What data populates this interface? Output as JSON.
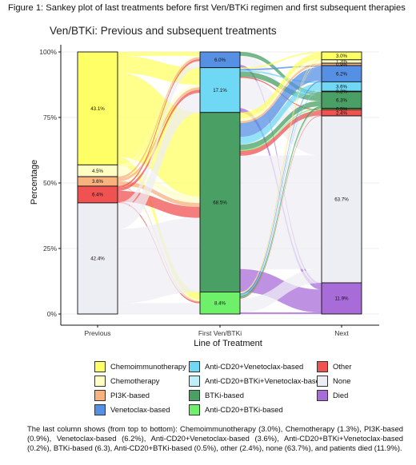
{
  "figure_caption": "Figure 1: Sankey plot of last treatments before first Ven/BTKi regimen and first subsequent therapies",
  "footnote": "The last column shows (from top to bottom): Chemoimmunotherapy (3.0%), Chemotherapy (1.3%), PI3K-based (0.9%), Venetoclax-based (6.2%), Anti-CD20+Venetoclax-based (3.6%), Anti-CD20+BTKi+Venetoclax-based (0.2%), BTKi-based (6.3), Anti-CD20+BTKi-based (0.5%), other (2.4%), none (63.7%), and patients died (11.9%).",
  "chart_data": {
    "type": "sankey",
    "title": "Ven/BTKi: Previous and subsequent treatments",
    "xlabel": "Line of Treatment",
    "ylabel": "Percentage",
    "ylim": [
      0,
      100
    ],
    "y_ticks": [
      "0%",
      "25%",
      "50%",
      "75%",
      "100%"
    ],
    "y_tick_values": [
      0,
      25,
      50,
      75,
      100
    ],
    "grid": true,
    "legend_position": "bottom",
    "colors": {
      "Chemoimmunotherapy": "#ffff66",
      "Chemotherapy": "#ffffc4",
      "PI3K-based": "#f7b27e",
      "Venetoclax-based": "#5590e4",
      "Anti-CD20+Venetoclax-based": "#6fd8f4",
      "Anti-CD20+BTKi+Venetoclax-based": "#bff0fa",
      "BTKi-based": "#4aa064",
      "Anti-CD20+BTKi-based": "#6ff06a",
      "Other": "#f05252",
      "None": "#ededf4",
      "Died": "#a86cd8"
    },
    "legend": [
      "Chemoimmunotherapy",
      "Chemotherapy",
      "PI3K-based",
      "Venetoclax-based",
      "Anti-CD20+Venetoclax-based",
      "Anti-CD20+BTKi+Venetoclax-based",
      "BTKi-based",
      "Anti-CD20+BTKi-based",
      "Other",
      "None",
      "Died"
    ],
    "columns": [
      {
        "name": "Previous",
        "segments": [
          {
            "category": "Chemoimmunotherapy",
            "value": 43.1,
            "label": "43.1%"
          },
          {
            "category": "Chemotherapy",
            "value": 4.5,
            "label": "4.5%"
          },
          {
            "category": "PI3K-based",
            "value": 3.6,
            "label": "3.6%"
          },
          {
            "category": "Other",
            "value": 6.4,
            "label": "6.4%"
          },
          {
            "category": "None",
            "value": 42.4,
            "label": "42.4%"
          }
        ]
      },
      {
        "name": "First Ven/BTKi",
        "segments": [
          {
            "category": "Venetoclax-based",
            "value": 6.0,
            "label": "6.0%"
          },
          {
            "category": "Anti-CD20+Venetoclax-based",
            "value": 17.1,
            "label": "17.1%"
          },
          {
            "category": "BTKi-based",
            "value": 68.5,
            "label": "68.5%"
          },
          {
            "category": "Anti-CD20+BTKi-based",
            "value": 8.4,
            "label": "8.4%"
          }
        ]
      },
      {
        "name": "Next",
        "segments": [
          {
            "category": "Chemoimmunotherapy",
            "value": 3.0,
            "label": "3.0%"
          },
          {
            "category": "Chemotherapy",
            "value": 1.3,
            "label": "1.3%"
          },
          {
            "category": "PI3K-based",
            "value": 0.9,
            "label": "0.9%"
          },
          {
            "category": "Venetoclax-based",
            "value": 6.2,
            "label": "6.2%"
          },
          {
            "category": "Anti-CD20+Venetoclax-based",
            "value": 3.6,
            "label": "3.6%"
          },
          {
            "category": "Anti-CD20+BTKi+Venetoclax-based",
            "value": 0.2,
            "label": "0.2%"
          },
          {
            "category": "BTKi-based",
            "value": 6.3,
            "label": "6.3%"
          },
          {
            "category": "Anti-CD20+BTKi-based",
            "value": 0.5,
            "label": "0.5%"
          },
          {
            "category": "Other",
            "value": 2.4,
            "label": "2.4%"
          },
          {
            "category": "None",
            "value": 63.7,
            "label": "63.7%"
          },
          {
            "category": "Died",
            "value": 11.9,
            "label": "11.9%"
          }
        ]
      }
    ],
    "flows": [
      {
        "stage": 0,
        "from": "Chemoimmunotherapy",
        "to": "Venetoclax-based",
        "value": 1.5
      },
      {
        "stage": 0,
        "from": "Chemoimmunotherapy",
        "to": "Anti-CD20+Venetoclax-based",
        "value": 6.5
      },
      {
        "stage": 0,
        "from": "Chemoimmunotherapy",
        "to": "BTKi-based",
        "value": 32.1
      },
      {
        "stage": 0,
        "from": "Chemoimmunotherapy",
        "to": "Anti-CD20+BTKi-based",
        "value": 3.0
      },
      {
        "stage": 0,
        "from": "Chemotherapy",
        "to": "Venetoclax-based",
        "value": 0.5
      },
      {
        "stage": 0,
        "from": "Chemotherapy",
        "to": "Anti-CD20+Venetoclax-based",
        "value": 1.0
      },
      {
        "stage": 0,
        "from": "Chemotherapy",
        "to": "BTKi-based",
        "value": 2.5
      },
      {
        "stage": 0,
        "from": "Chemotherapy",
        "to": "Anti-CD20+BTKi-based",
        "value": 0.5
      },
      {
        "stage": 0,
        "from": "PI3K-based",
        "to": "Venetoclax-based",
        "value": 0.8
      },
      {
        "stage": 0,
        "from": "PI3K-based",
        "to": "Anti-CD20+Venetoclax-based",
        "value": 1.0
      },
      {
        "stage": 0,
        "from": "PI3K-based",
        "to": "BTKi-based",
        "value": 1.5
      },
      {
        "stage": 0,
        "from": "PI3K-based",
        "to": "Anti-CD20+BTKi-based",
        "value": 0.3
      },
      {
        "stage": 0,
        "from": "Other",
        "to": "Venetoclax-based",
        "value": 0.7
      },
      {
        "stage": 0,
        "from": "Other",
        "to": "Anti-CD20+Venetoclax-based",
        "value": 1.1
      },
      {
        "stage": 0,
        "from": "Other",
        "to": "BTKi-based",
        "value": 4.1
      },
      {
        "stage": 0,
        "from": "Other",
        "to": "Anti-CD20+BTKi-based",
        "value": 0.5
      },
      {
        "stage": 0,
        "from": "None",
        "to": "Venetoclax-based",
        "value": 2.5
      },
      {
        "stage": 0,
        "from": "None",
        "to": "Anti-CD20+Venetoclax-based",
        "value": 7.5
      },
      {
        "stage": 0,
        "from": "None",
        "to": "BTKi-based",
        "value": 28.3
      },
      {
        "stage": 0,
        "from": "None",
        "to": "Anti-CD20+BTKi-based",
        "value": 4.1
      },
      {
        "stage": 1,
        "from": "Venetoclax-based",
        "to": "BTKi-based",
        "value": 1.5
      },
      {
        "stage": 1,
        "from": "Venetoclax-based",
        "to": "None",
        "value": 3.5
      },
      {
        "stage": 1,
        "from": "Venetoclax-based",
        "to": "Died",
        "value": 1.0
      },
      {
        "stage": 1,
        "from": "Anti-CD20+Venetoclax-based",
        "to": "Chemoimmunotherapy",
        "value": 0.5
      },
      {
        "stage": 1,
        "from": "Anti-CD20+Venetoclax-based",
        "to": "Venetoclax-based",
        "value": 0.5
      },
      {
        "stage": 1,
        "from": "Anti-CD20+Venetoclax-based",
        "to": "Anti-CD20+Venetoclax-based",
        "value": 0.5
      },
      {
        "stage": 1,
        "from": "Anti-CD20+Venetoclax-based",
        "to": "BTKi-based",
        "value": 2.0
      },
      {
        "stage": 1,
        "from": "Anti-CD20+Venetoclax-based",
        "to": "Other",
        "value": 0.4
      },
      {
        "stage": 1,
        "from": "Anti-CD20+Venetoclax-based",
        "to": "None",
        "value": 11.6
      },
      {
        "stage": 1,
        "from": "Anti-CD20+Venetoclax-based",
        "to": "Died",
        "value": 1.6
      },
      {
        "stage": 1,
        "from": "BTKi-based",
        "to": "Chemoimmunotherapy",
        "value": 2.2
      },
      {
        "stage": 1,
        "from": "BTKi-based",
        "to": "Chemotherapy",
        "value": 1.1
      },
      {
        "stage": 1,
        "from": "BTKi-based",
        "to": "PI3K-based",
        "value": 0.8
      },
      {
        "stage": 1,
        "from": "BTKi-based",
        "to": "Venetoclax-based",
        "value": 5.2
      },
      {
        "stage": 1,
        "from": "BTKi-based",
        "to": "Anti-CD20+Venetoclax-based",
        "value": 2.8
      },
      {
        "stage": 1,
        "from": "BTKi-based",
        "to": "Anti-CD20+BTKi+Venetoclax-based",
        "value": 0.2
      },
      {
        "stage": 1,
        "from": "BTKi-based",
        "to": "BTKi-based",
        "value": 2.0
      },
      {
        "stage": 1,
        "from": "BTKi-based",
        "to": "Anti-CD20+BTKi-based",
        "value": 0.4
      },
      {
        "stage": 1,
        "from": "BTKi-based",
        "to": "Other",
        "value": 1.8
      },
      {
        "stage": 1,
        "from": "BTKi-based",
        "to": "None",
        "value": 43.3
      },
      {
        "stage": 1,
        "from": "BTKi-based",
        "to": "Died",
        "value": 8.7
      },
      {
        "stage": 1,
        "from": "Anti-CD20+BTKi-based",
        "to": "Chemoimmunotherapy",
        "value": 0.3
      },
      {
        "stage": 1,
        "from": "Anti-CD20+BTKi-based",
        "to": "Chemotherapy",
        "value": 0.2
      },
      {
        "stage": 1,
        "from": "Anti-CD20+BTKi-based",
        "to": "PI3K-based",
        "value": 0.1
      },
      {
        "stage": 1,
        "from": "Anti-CD20+BTKi-based",
        "to": "Venetoclax-based",
        "value": 0.5
      },
      {
        "stage": 1,
        "from": "Anti-CD20+BTKi-based",
        "to": "Anti-CD20+Venetoclax-based",
        "value": 0.3
      },
      {
        "stage": 1,
        "from": "Anti-CD20+BTKi-based",
        "to": "BTKi-based",
        "value": 0.8
      },
      {
        "stage": 1,
        "from": "Anti-CD20+BTKi-based",
        "to": "Anti-CD20+BTKi-based",
        "value": 0.1
      },
      {
        "stage": 1,
        "from": "Anti-CD20+BTKi-based",
        "to": "Other",
        "value": 0.2
      },
      {
        "stage": 1,
        "from": "Anti-CD20+BTKi-based",
        "to": "None",
        "value": 5.3
      },
      {
        "stage": 1,
        "from": "Anti-CD20+BTKi-based",
        "to": "Died",
        "value": 0.6
      }
    ]
  }
}
